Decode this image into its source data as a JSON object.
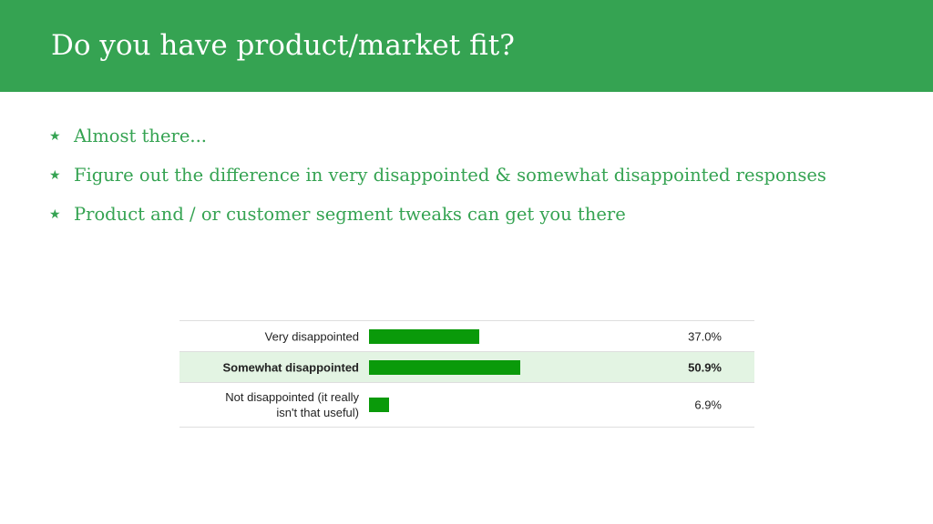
{
  "slide": {
    "title": "Do you have product/market fit?",
    "bullets": [
      "Almost there...",
      "Figure out the difference in very disappointed & somewhat disappointed responses",
      "Product and / or customer segment tweaks can get you there"
    ],
    "bullet_icon": "star-icon",
    "bullet_glyph": "★"
  },
  "colors": {
    "header_background": "#35a352",
    "accent_text": "#35a352",
    "bar_fill": "#0a9a0a",
    "highlight_row": "#e3f4e3"
  },
  "results": {
    "rows": [
      {
        "label": "Very disappointed",
        "percent_label": "37.0%",
        "value": 37.0
      },
      {
        "label": "Somewhat disappointed",
        "percent_label": "50.9%",
        "value": 50.9
      },
      {
        "label": "Not disappointed (it really\nisn't that useful)",
        "percent_label": "6.9%",
        "value": 6.9
      }
    ]
  }
}
